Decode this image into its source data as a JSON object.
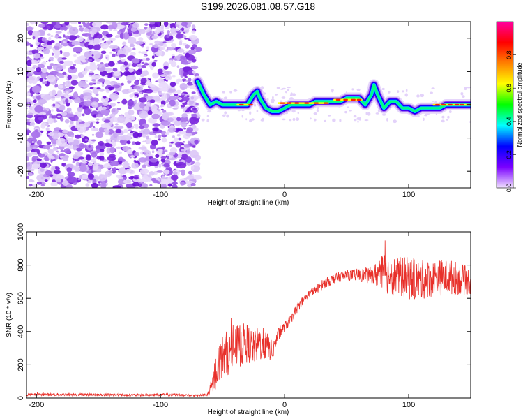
{
  "title": "S199.2026.081.08.57.G18",
  "chart_data": [
    {
      "type": "heatmap",
      "panel": "spectrogram",
      "xlabel": "Height of straight line (km)",
      "ylabel": "Frequency (Hz)",
      "xlim": [
        -208,
        150
      ],
      "ylim": [
        -25,
        25
      ],
      "xticks": [
        "-200",
        "-100",
        "0",
        "100"
      ],
      "xtick_values": [
        -200,
        -100,
        0,
        100
      ],
      "yticks": [
        "-20",
        "-10",
        "0",
        "10",
        "20"
      ],
      "ytick_values": [
        -20,
        -10,
        0,
        10,
        20
      ],
      "noise_region_x": [
        -208,
        -70
      ],
      "signal_region_x": [
        -70,
        150
      ],
      "signal_ridge": {
        "x": [
          -70,
          -65,
          -60,
          -55,
          -50,
          -45,
          -40,
          -35,
          -30,
          -25,
          -22,
          -20,
          -15,
          -10,
          -5,
          0,
          5,
          10,
          15,
          20,
          25,
          30,
          35,
          40,
          45,
          50,
          55,
          60,
          65,
          70,
          72,
          75,
          80,
          85,
          90,
          95,
          100,
          105,
          110,
          115,
          120,
          125,
          130,
          135,
          140,
          145,
          150
        ],
        "y": [
          7,
          3,
          0,
          1,
          0,
          0,
          0,
          0,
          0,
          3,
          4,
          2,
          -1,
          -2,
          -2,
          -1,
          0,
          0,
          0,
          0,
          1,
          1,
          1,
          1,
          1,
          2,
          2,
          2,
          0,
          3,
          6,
          3,
          -1,
          1,
          1,
          -1,
          -1,
          -2,
          -1,
          -1,
          -1,
          -1,
          0,
          0,
          0,
          0,
          0
        ]
      },
      "colorbar": {
        "label": "Normalized spectral amplitude",
        "range": [
          0,
          1
        ],
        "ticks": [
          "0.0",
          "0.2",
          "0.4",
          "0.6",
          "0.8"
        ],
        "tick_values": [
          0.0,
          0.2,
          0.4,
          0.6,
          0.8
        ],
        "colors": [
          "#f0e0ff",
          "#7a00ff",
          "#0000ff",
          "#00ffff",
          "#00ff00",
          "#ffff00",
          "#ff8000",
          "#ff0000",
          "#ff00a0"
        ]
      }
    },
    {
      "type": "line",
      "panel": "snr",
      "xlabel": "Height of straight line (km)",
      "ylabel": "SNR (10 * v/v)",
      "xlim": [
        -208,
        150
      ],
      "ylim": [
        0,
        1000
      ],
      "xticks": [
        "-200",
        "-100",
        "0",
        "100"
      ],
      "xtick_values": [
        -200,
        -100,
        0,
        100
      ],
      "yticks": [
        "0",
        "200",
        "400",
        "600",
        "800",
        "1000"
      ],
      "ytick_values": [
        0,
        200,
        400,
        600,
        800,
        1000
      ],
      "color": "#e8302a",
      "series": [
        {
          "name": "SNR",
          "x": [
            -208,
            -180,
            -150,
            -120,
            -90,
            -70,
            -62,
            -58,
            -55,
            -50,
            -45,
            -40,
            -35,
            -30,
            -25,
            -20,
            -15,
            -10,
            -5,
            0,
            5,
            10,
            15,
            20,
            25,
            30,
            40,
            50,
            60,
            70,
            80,
            90,
            100,
            110,
            120,
            130,
            140,
            150
          ],
          "y": [
            20,
            22,
            20,
            18,
            20,
            15,
            20,
            80,
            180,
            250,
            280,
            300,
            320,
            330,
            300,
            330,
            320,
            280,
            380,
            430,
            470,
            540,
            590,
            630,
            650,
            680,
            720,
            740,
            740,
            740,
            750,
            730,
            720,
            710,
            720,
            730,
            720,
            700
          ],
          "noise_amplitude": [
            8,
            8,
            8,
            8,
            8,
            5,
            10,
            60,
            120,
            130,
            140,
            130,
            130,
            120,
            100,
            110,
            90,
            60,
            40,
            30,
            30,
            30,
            25,
            25,
            25,
            30,
            30,
            30,
            40,
            50,
            120,
            120,
            130,
            120,
            110,
            110,
            100,
            80
          ]
        }
      ]
    }
  ]
}
